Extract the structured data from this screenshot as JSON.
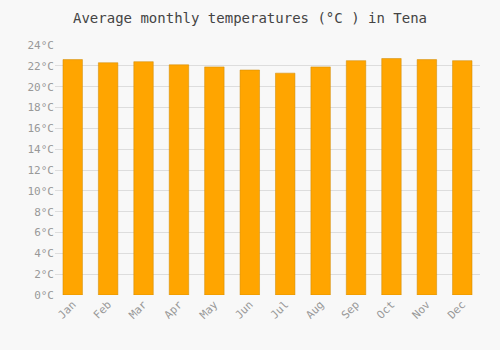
{
  "chart_data": {
    "type": "bar",
    "title": "Average monthly temperatures (°C ) in Tena",
    "categories": [
      "Jan",
      "Feb",
      "Mar",
      "Apr",
      "May",
      "Jun",
      "Jul",
      "Aug",
      "Sep",
      "Oct",
      "Nov",
      "Dec"
    ],
    "values": [
      22.6,
      22.3,
      22.4,
      22.1,
      21.9,
      21.6,
      21.3,
      21.9,
      22.5,
      22.7,
      22.6,
      22.5
    ],
    "color": "#FFA500",
    "ylim": [
      0,
      24
    ],
    "yticks": [
      {
        "value": 0,
        "label": "0°C"
      },
      {
        "value": 2,
        "label": "2°C"
      },
      {
        "value": 4,
        "label": "4°C"
      },
      {
        "value": 6,
        "label": "6°C"
      },
      {
        "value": 8,
        "label": "8°C"
      },
      {
        "value": 10,
        "label": "10°C"
      },
      {
        "value": 12,
        "label": "12°C"
      },
      {
        "value": 14,
        "label": "14°C"
      },
      {
        "value": 16,
        "label": "16°C"
      },
      {
        "value": 18,
        "label": "18°C"
      },
      {
        "value": 20,
        "label": "20°C"
      },
      {
        "value": 22,
        "label": "22°C"
      },
      {
        "value": 24,
        "label": "24°C"
      }
    ],
    "grid": true
  }
}
